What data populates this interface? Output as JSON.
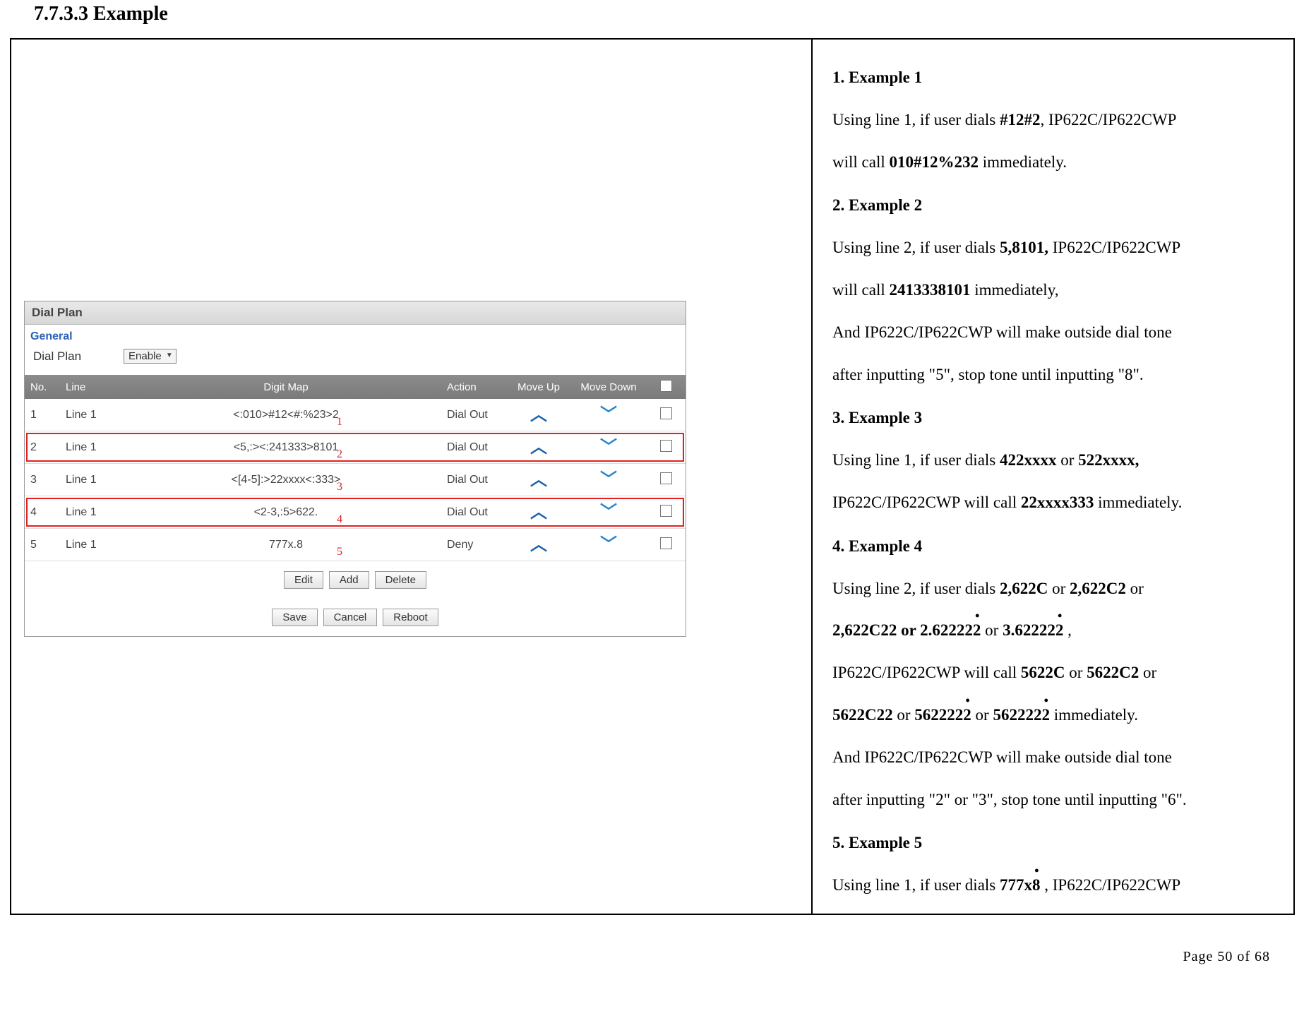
{
  "heading": "7.7.3.3  Example",
  "screenshot": {
    "panel_title": "Dial Plan",
    "general_label": "General",
    "dialplan_label": "Dial Plan",
    "dialplan_value": "Enable",
    "columns": {
      "no": "No.",
      "line": "Line",
      "map": "Digit Map",
      "action": "Action",
      "up": "Move Up",
      "down": "Move Down"
    },
    "rows": [
      {
        "no": "1",
        "line": "Line 1",
        "map": "<:010>#12<#:%23>2",
        "action": "Dial Out",
        "marker": "1",
        "highlight": false
      },
      {
        "no": "2",
        "line": "Line 1",
        "map": "<5,:><:241333>8101",
        "action": "Dial Out",
        "marker": "2",
        "highlight": true
      },
      {
        "no": "3",
        "line": "Line 1",
        "map": "<[4-5]:>22xxxx<:333>",
        "action": "Dial Out",
        "marker": "3",
        "highlight": false
      },
      {
        "no": "4",
        "line": "Line 1",
        "map": "<2-3,:5>622.",
        "action": "Dial Out",
        "marker": "4",
        "highlight": true
      },
      {
        "no": "5",
        "line": "Line 1",
        "map": "777x.8",
        "action": "Deny",
        "marker": "5",
        "highlight": false
      }
    ],
    "buttons_row1": [
      "Edit",
      "Add",
      "Delete"
    ],
    "buttons_row2": [
      "Save",
      "Cancel",
      "Reboot"
    ]
  },
  "right": {
    "e1_head": "1.   Example 1",
    "e1_l1a": "Using  line  1,  if  user  dials ",
    "e1_l1b": "#12#2",
    "e1_l1c": ",  IP622C/IP622CWP",
    "e1_l2a": "will call ",
    "e1_l2b": "010#12%232",
    "e1_l2c": " immediately.",
    "e2_head": "2.   Example 2",
    "e2_l1a": "Using  line  2,  if  user  dials ",
    "e2_l1b": "5,8101,",
    "e2_l1c": " IP622C/IP622CWP",
    "e2_l2a": "will call ",
    "e2_l2b": "2413338101",
    "e2_l2c": " immediately,",
    "e2_l3": "And  IP622C/IP622CWP  will  make  outside  dial  tone",
    "e2_l4": "after inputting \"5\", stop tone until inputting \"8\".",
    "e3_head": "3.   Example 3",
    "e3_l1a": "Using   line   1,   if   user   dials  ",
    "e3_l1b": "422xxxx",
    "e3_l1c": "  or  ",
    "e3_l1d": "522xxxx,",
    "e3_l2a": "IP622C/IP622CWP will call ",
    "e3_l2b": "22xxxx333",
    "e3_l2c": " immediately.",
    "e4_head": "4.   Example 4",
    "e4_l1a": "Using   line   2,   if   user   dials  ",
    "e4_l1b": "2,622C",
    "e4_l1c": "  or  ",
    "e4_l1d": "2,622C2",
    "e4_l1e": "  or",
    "e4_l2a": "2,622C22",
    "e4_l2b": "     or     ",
    "e4_l2c": "2.622222",
    "e4_l2d": "         or       ",
    "e4_l2e": "3.622222",
    "e4_l2f": "   ,",
    "e4_l3a": "IP622C/IP622CWP   will   call  ",
    "e4_l3b": "5622C",
    "e4_l3c": "  or  ",
    "e4_l3d": "5622C2",
    "e4_l3e": "  or",
    "e4_l4a": "5622C22",
    "e4_l4b": " or ",
    "e4_l4c": "5622222",
    "e4_l4d": " or ",
    "e4_l4e": "5622222",
    "e4_l4f": " immediately.",
    "e4_l5": "And  IP622C/IP622CWP  will  make  outside  dial  tone",
    "e4_l6": "after inputting \"2\" or \"3\", stop tone until inputting \"6\".",
    "e5_head": "5.   Example 5",
    "e5_l1a": "Using  line  1,  if  user  dials ",
    "e5_l1b": "777x8",
    "e5_l1c": " ,  IP622C/IP622CWP"
  },
  "page_num": "Page  50  of  68"
}
